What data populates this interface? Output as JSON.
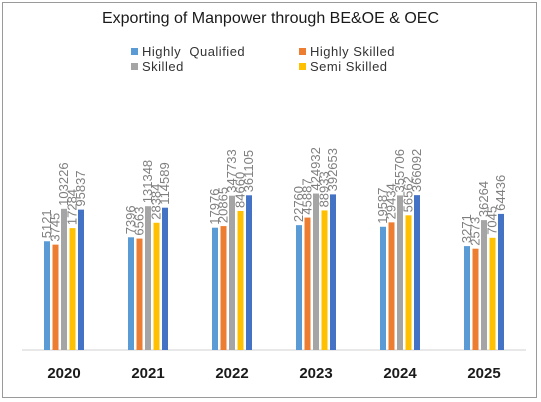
{
  "chart_data": {
    "type": "bar",
    "title": "Exporting of Manpower through BE&OE & OEC",
    "xlabel": "",
    "ylabel": "",
    "categories": [
      "2020",
      "2021",
      "2022",
      "2023",
      "2024",
      "2025"
    ],
    "series": [
      {
        "name": "Highly  Qualified",
        "color": "#5b9bd5",
        "values": [
          5121,
          7396,
          17976,
          22760,
          19587,
          3271
        ]
      },
      {
        "name": "Highly Skilled",
        "color": "#ed7d31",
        "values": [
          3745,
          6563,
          20865,
          45887,
          29434,
          2573
        ]
      },
      {
        "name": "Skilled",
        "color": "#a5a5a5",
        "values": [
          103226,
          131348,
          347733,
          424932,
          355706,
          36264
        ]
      },
      {
        "name": "Semi Skilled",
        "color": "#ffc000",
        "values": [
          17284,
          28384,
          84660,
          88933,
          56562,
          7045
        ]
      },
      {
        "name": "",
        "color": "#4472c4",
        "values": [
          95837,
          114589,
          361105,
          392653,
          366092,
          64436
        ]
      }
    ],
    "legend_position": "top",
    "grid": false
  }
}
